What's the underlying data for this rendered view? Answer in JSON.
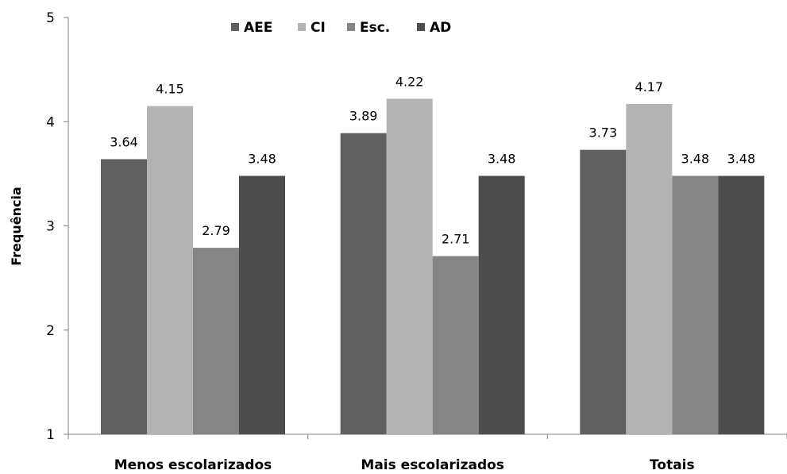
{
  "chart_data": {
    "type": "bar",
    "title": "",
    "xlabel": "",
    "ylabel": "Frequência",
    "ylim": [
      1,
      5
    ],
    "yticks": [
      1,
      2,
      3,
      4,
      5
    ],
    "grid": false,
    "legend_position": "top",
    "categories": [
      "Menos escolarizados",
      "Mais escolarizados",
      "Totais"
    ],
    "series": [
      {
        "name": "AEE",
        "color": "#606060",
        "values": [
          3.64,
          3.89,
          3.73
        ],
        "labels": [
          "3.64",
          "3.89",
          "3.73"
        ]
      },
      {
        "name": "CI",
        "color": "#b3b3b3",
        "values": [
          4.15,
          4.22,
          4.17
        ],
        "labels": [
          "4.15",
          "4.22",
          "4.17"
        ]
      },
      {
        "name": "Esc.",
        "color": "#858585",
        "values": [
          2.79,
          2.71,
          3.48
        ],
        "labels": [
          "2.79",
          "2.71",
          "3.48"
        ]
      },
      {
        "name": "AD",
        "color": "#4d4d4d",
        "values": [
          3.48,
          3.48,
          3.48
        ],
        "labels": [
          "3.48",
          "3.48",
          "3.48"
        ]
      }
    ]
  }
}
